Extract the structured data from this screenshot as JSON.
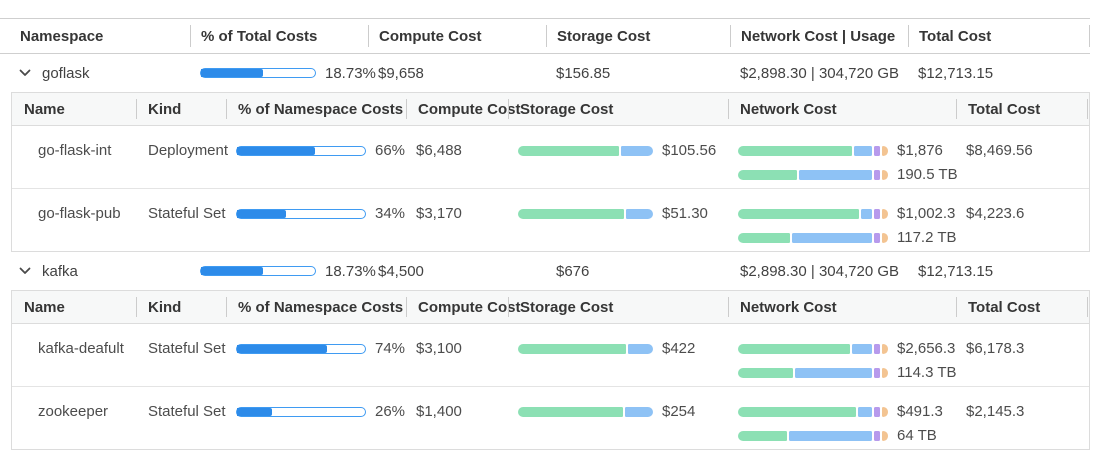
{
  "colors": {
    "green": "#8ce0b4",
    "blue": "#8ec2f5",
    "purple": "#b79aec",
    "orange": "#f3c492",
    "progress_fill": "#2d8be9",
    "progress_border": "#3f9bf2"
  },
  "table": {
    "header": [
      "Namespace",
      "% of Total Costs",
      "Compute Cost",
      "Storage Cost",
      "Network Cost | Usage",
      "Total Cost"
    ],
    "nested_header": [
      "Name",
      "Kind",
      "% of Namespace Costs",
      "Compute Cost",
      "Storage Cost",
      "Network Cost",
      "Total Cost"
    ]
  },
  "namespaces": [
    {
      "name": "goflask",
      "pct": "18.73%",
      "pct_fill": 54,
      "compute": "$9,658",
      "storage": "$156.85",
      "network": "$2,898.30 | 304,720 GB",
      "total": "$12,713.15",
      "workloads": [
        {
          "name": "go-flask-int",
          "kind": "Deployment",
          "pct": "66%",
          "pct_fill": 61,
          "compute": "$6,488",
          "storage_label": "$105.56",
          "storage_segments": [
            {
              "c": "green",
              "w": 76
            },
            {
              "c": "blue",
              "w": 24
            }
          ],
          "net_cost_label": "$1,876",
          "net_cost_segments": [
            {
              "c": "green",
              "w": 79
            },
            {
              "c": "blue",
              "w": 13
            },
            {
              "c": "purple",
              "w": 4
            },
            {
              "c": "orange",
              "w": 4
            }
          ],
          "net_usage_label": "190.5 TB",
          "net_usage_segments": [
            {
              "c": "green",
              "w": 41
            },
            {
              "c": "blue",
              "w": 51
            },
            {
              "c": "purple",
              "w": 4
            },
            {
              "c": "orange",
              "w": 4
            }
          ],
          "total": "$8,469.56"
        },
        {
          "name": "go-flask-pub",
          "kind": "Stateful Set",
          "pct": "34%",
          "pct_fill": 38,
          "compute": "$3,170",
          "storage_label": "$51.30",
          "storage_segments": [
            {
              "c": "green",
              "w": 80
            },
            {
              "c": "blue",
              "w": 20
            }
          ],
          "net_cost_label": "$1,002.3",
          "net_cost_segments": [
            {
              "c": "green",
              "w": 84
            },
            {
              "c": "blue",
              "w": 8
            },
            {
              "c": "purple",
              "w": 4
            },
            {
              "c": "orange",
              "w": 4
            }
          ],
          "net_usage_label": "117.2 TB",
          "net_usage_segments": [
            {
              "c": "green",
              "w": 36
            },
            {
              "c": "blue",
              "w": 56
            },
            {
              "c": "purple",
              "w": 4
            },
            {
              "c": "orange",
              "w": 4
            }
          ],
          "total": "$4,223.6"
        }
      ]
    },
    {
      "name": "kafka",
      "pct": "18.73%",
      "pct_fill": 54,
      "compute": "$4,500",
      "storage": "$676",
      "network": "$2,898.30 | 304,720 GB",
      "total": "$12,713.15",
      "workloads": [
        {
          "name": "kafka-deafult",
          "kind": "Stateful Set",
          "pct": "74%",
          "pct_fill": 70,
          "compute": "$3,100",
          "storage_label": "$422",
          "storage_segments": [
            {
              "c": "green",
              "w": 81
            },
            {
              "c": "blue",
              "w": 19
            }
          ],
          "net_cost_label": "$2,656.3",
          "net_cost_segments": [
            {
              "c": "green",
              "w": 78
            },
            {
              "c": "blue",
              "w": 14
            },
            {
              "c": "purple",
              "w": 4
            },
            {
              "c": "orange",
              "w": 4
            }
          ],
          "net_usage_label": "114.3 TB",
          "net_usage_segments": [
            {
              "c": "green",
              "w": 38
            },
            {
              "c": "blue",
              "w": 54
            },
            {
              "c": "purple",
              "w": 4
            },
            {
              "c": "orange",
              "w": 4
            }
          ],
          "total": "$6,178.3"
        },
        {
          "name": "zookeeper",
          "kind": "Stateful Set",
          "pct": "26%",
          "pct_fill": 27,
          "compute": "$1,400",
          "storage_label": "$254",
          "storage_segments": [
            {
              "c": "green",
              "w": 79
            },
            {
              "c": "blue",
              "w": 21
            }
          ],
          "net_cost_label": "$491.3",
          "net_cost_segments": [
            {
              "c": "green",
              "w": 82
            },
            {
              "c": "blue",
              "w": 10
            },
            {
              "c": "purple",
              "w": 4
            },
            {
              "c": "orange",
              "w": 4
            }
          ],
          "net_usage_label": "64 TB",
          "net_usage_segments": [
            {
              "c": "green",
              "w": 34
            },
            {
              "c": "blue",
              "w": 58
            },
            {
              "c": "purple",
              "w": 4
            },
            {
              "c": "orange",
              "w": 4
            }
          ],
          "total": "$2,145.3"
        }
      ]
    }
  ]
}
